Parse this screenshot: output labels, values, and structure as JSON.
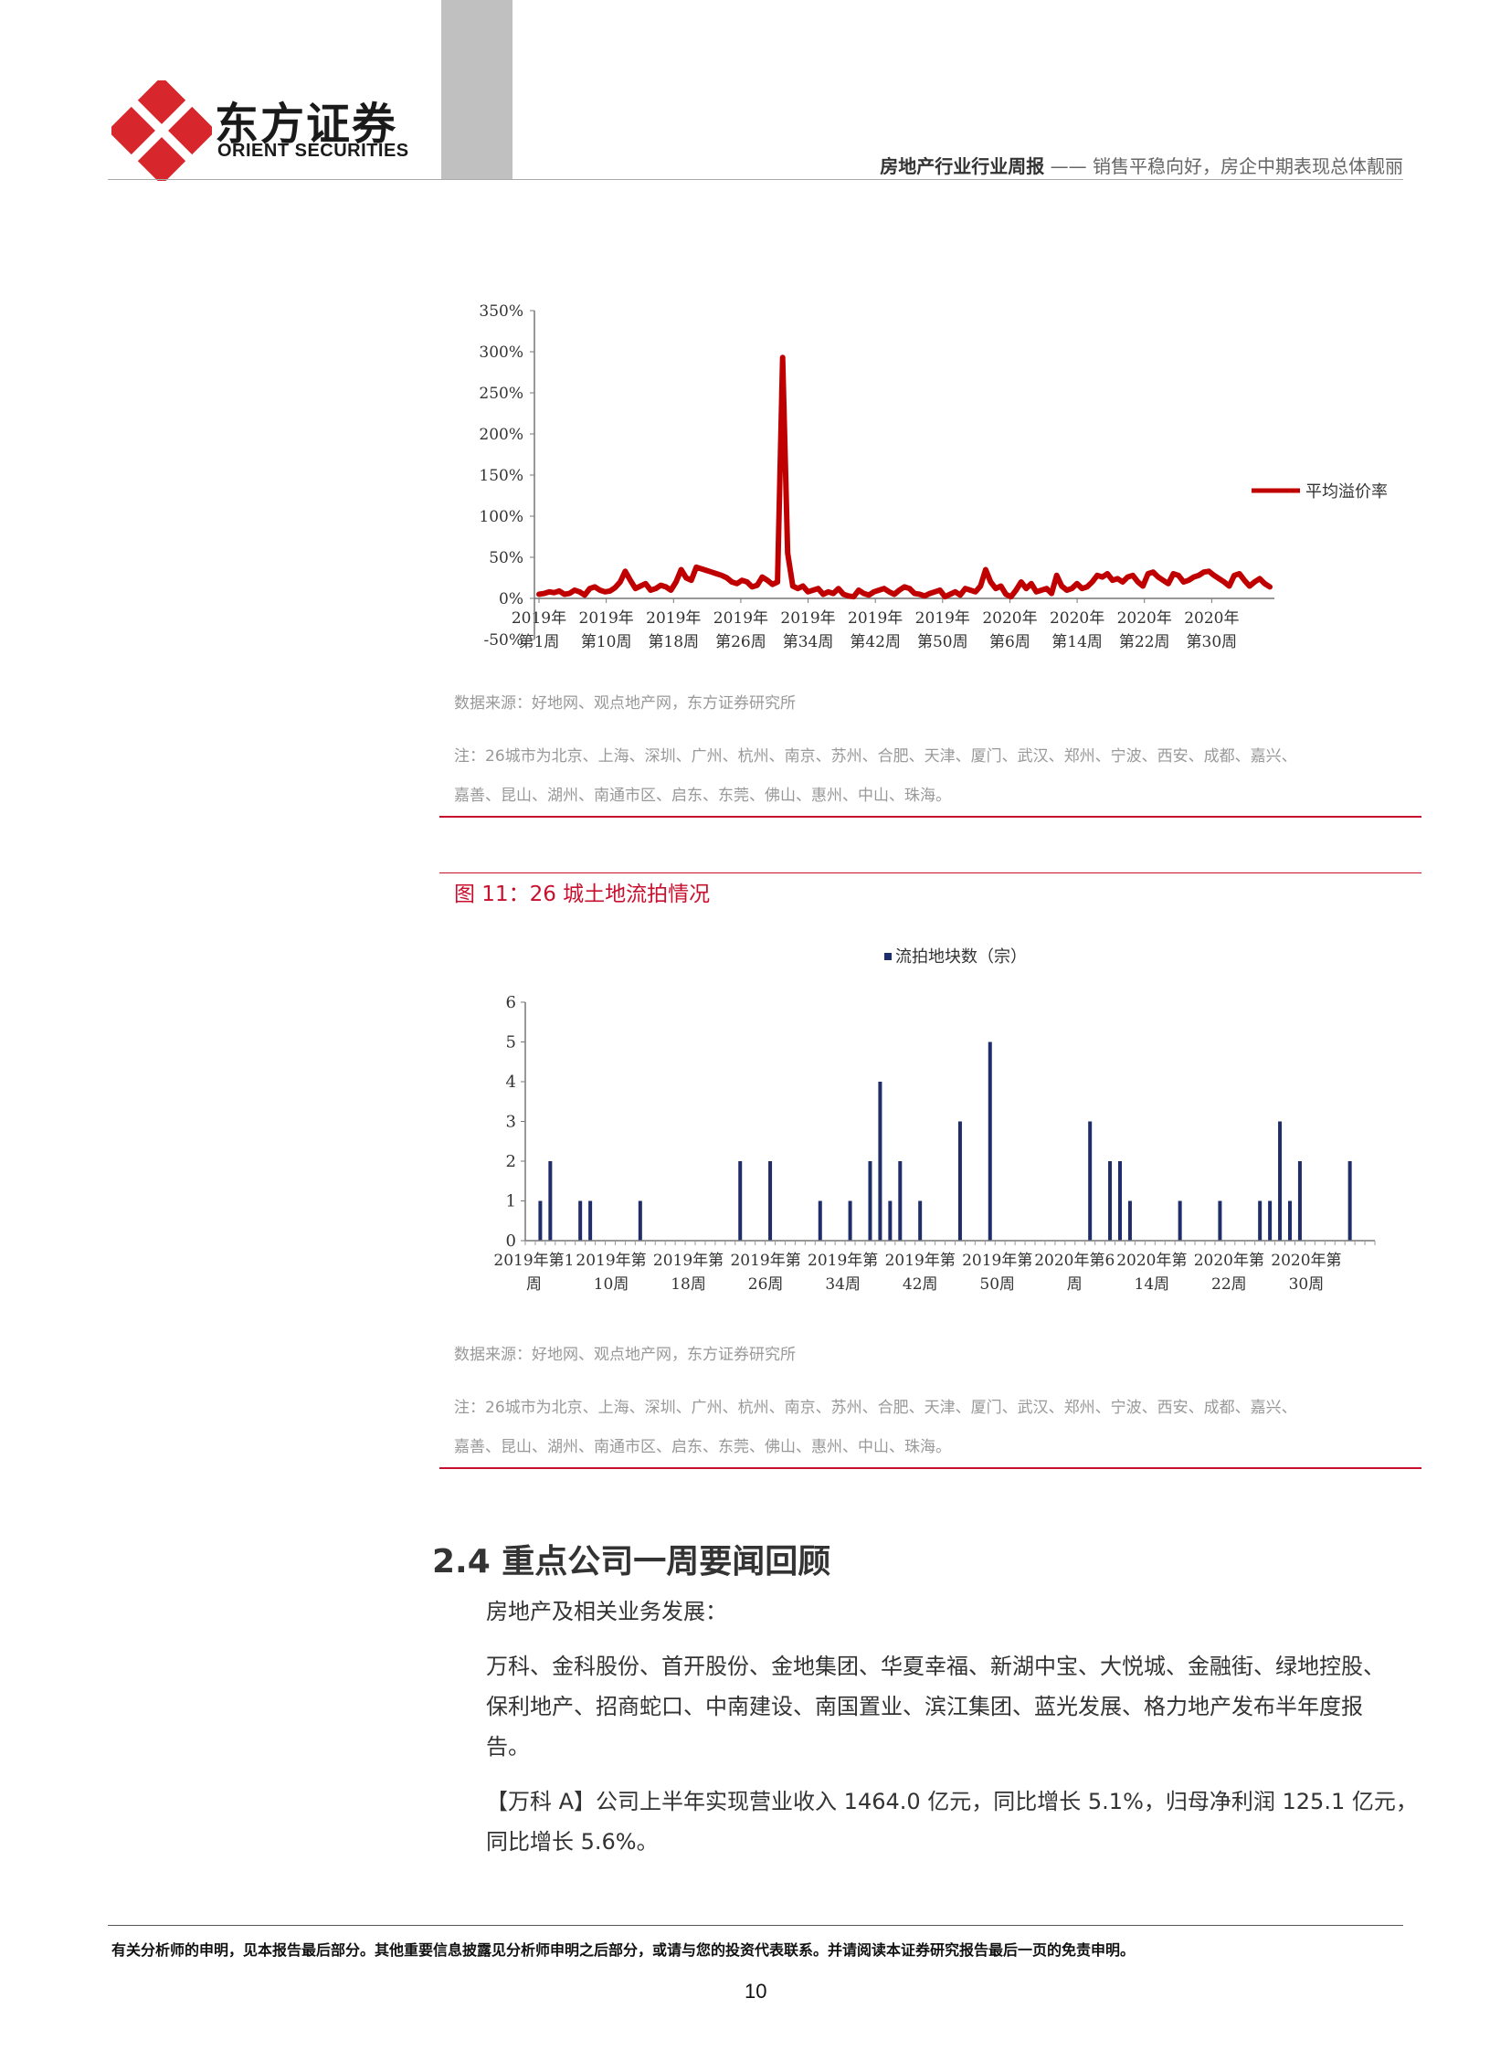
{
  "header": {
    "logo_cn": "东方证券",
    "logo_en": "ORIENT SECURITIES",
    "report_type": "房地产行业行业周报",
    "separator": "——",
    "report_subtitle": "销售平稳向好，房企中期表现总体靓丽",
    "colors": {
      "brand_red": "#d7262c",
      "gray_band": "#c0c0c0"
    }
  },
  "figure10": {
    "source": "数据来源：好地网、观点地产网，东方证券研究所",
    "note_line1": "注：26城市为北京、上海、深圳、广州、杭州、南京、苏州、合肥、天津、厦门、武汉、郑州、宁波、西安、成都、嘉兴、",
    "note_line2": "嘉善、昆山、湖州、南通市区、启东、东莞、佛山、惠州、中山、珠海。"
  },
  "figure11": {
    "title": "图 11：26 城土地流拍情况",
    "source": "数据来源：好地网、观点地产网，东方证券研究所",
    "note_line1": "注：26城市为北京、上海、深圳、广州、杭州、南京、苏州、合肥、天津、厦门、武汉、郑州、宁波、西安、成都、嘉兴、",
    "note_line2": "嘉善、昆山、湖州、南通市区、启东、东莞、佛山、惠州、中山、珠海。"
  },
  "chart_data": [
    {
      "type": "line",
      "title": "",
      "xlabel": "",
      "ylabel": "",
      "ylim": [
        -50,
        350
      ],
      "y_ticks": [
        "350%",
        "300%",
        "250%",
        "200%",
        "150%",
        "100%",
        "50%",
        "0%",
        "-50%"
      ],
      "x_ticks_line1": [
        "2019年",
        "2019年",
        "2019年",
        "2019年",
        "2019年",
        "2019年",
        "2019年",
        "2020年",
        "2020年",
        "2020年",
        "2020年"
      ],
      "x_ticks_line2": [
        "第1周",
        "第10周",
        "第18周",
        "第26周",
        "第34周",
        "第42周",
        "第50周",
        "第6周",
        "第14周",
        "第22周",
        "第30周"
      ],
      "legend_position": "right",
      "color": "#c00000",
      "series": [
        {
          "name": "平均溢价率",
          "values": [
            5,
            6,
            8,
            7,
            9,
            5,
            6,
            10,
            8,
            4,
            12,
            14,
            10,
            8,
            9,
            13,
            20,
            33,
            22,
            12,
            15,
            18,
            10,
            12,
            16,
            14,
            10,
            20,
            35,
            25,
            22,
            38,
            36,
            34,
            32,
            30,
            28,
            25,
            20,
            18,
            22,
            20,
            14,
            16,
            26,
            22,
            17,
            20,
            293,
            55,
            15,
            12,
            15,
            8,
            10,
            12,
            5,
            8,
            6,
            12,
            5,
            3,
            2,
            10,
            6,
            4,
            8,
            10,
            12,
            8,
            5,
            10,
            14,
            12,
            6,
            5,
            3,
            6,
            8,
            10,
            2,
            5,
            8,
            4,
            12,
            10,
            8,
            15,
            35,
            20,
            12,
            15,
            5,
            2,
            10,
            20,
            12,
            18,
            8,
            10,
            12,
            6,
            28,
            15,
            10,
            12,
            18,
            12,
            14,
            20,
            28,
            26,
            30,
            22,
            24,
            20,
            26,
            28,
            20,
            15,
            30,
            32,
            26,
            22,
            18,
            30,
            28,
            20,
            22,
            26,
            28,
            32,
            33,
            28,
            24,
            20,
            15,
            28,
            30,
            22,
            15,
            20,
            24,
            18,
            14
          ],
          "value_unit": "%"
        }
      ]
    },
    {
      "type": "bar",
      "title": "",
      "xlabel": "",
      "ylabel": "",
      "ylim": [
        0,
        6
      ],
      "y_ticks": [
        "0",
        "1",
        "2",
        "3",
        "4",
        "5",
        "6"
      ],
      "x_ticks_line1": [
        "2019年第1",
        "2019年第",
        "2019年第",
        "2019年第",
        "2019年第",
        "2019年第",
        "2019年第",
        "2020年第6",
        "2020年第",
        "2020年第",
        "2020年第"
      ],
      "x_ticks_line2": [
        "周",
        "10周",
        "18周",
        "26周",
        "34周",
        "42周",
        "50周",
        "周",
        "14周",
        "22周",
        "30周"
      ],
      "legend_position": "top",
      "color": "#1f2d6b",
      "series": [
        {
          "name": "流拍地块数（宗）",
          "values": [
            0,
            1,
            2,
            0,
            0,
            1,
            1,
            0,
            0,
            0,
            0,
            1,
            0,
            0,
            0,
            0,
            0,
            0,
            0,
            0,
            0,
            2,
            0,
            0,
            2,
            0,
            0,
            0,
            0,
            1,
            0,
            0,
            1,
            0,
            2,
            4,
            1,
            2,
            0,
            1,
            0,
            0,
            0,
            3,
            0,
            0,
            5,
            0,
            0,
            0,
            0,
            0,
            0,
            0,
            0,
            0,
            3,
            0,
            2,
            2,
            1,
            0,
            0,
            0,
            0,
            1,
            0,
            0,
            0,
            1,
            0,
            0,
            0,
            1,
            1,
            3,
            1,
            2,
            0,
            0,
            0,
            0,
            2,
            0,
            0
          ]
        }
      ]
    }
  ],
  "section": {
    "heading": "2.4 重点公司一周要闻回顾",
    "subheading": "房地产及相关业务发展：",
    "para1_line1": "万科、金科股份、首开股份、金地集团、华夏幸福、新湖中宝、大悦城、金融街、绿地控股、",
    "para1_line2": "保利地产、招商蛇口、中南建设、南国置业、滨江集团、蓝光发展、格力地产发布半年度报",
    "para1_line3": "告。",
    "para2_line1": "【万科 A】公司上半年实现营业收入 1464.0 亿元，同比增长 5.1%，归母净利润 125.1 亿元，",
    "para2_line2": "同比增长 5.6%。"
  },
  "footer": {
    "disclaimer": "有关分析师的申明，见本报告最后部分。其他重要信息披露见分析师申明之后部分，或请与您的投资代表联系。并请阅读本证券研究报告最后一页的免责申明。",
    "page_number": "10"
  }
}
